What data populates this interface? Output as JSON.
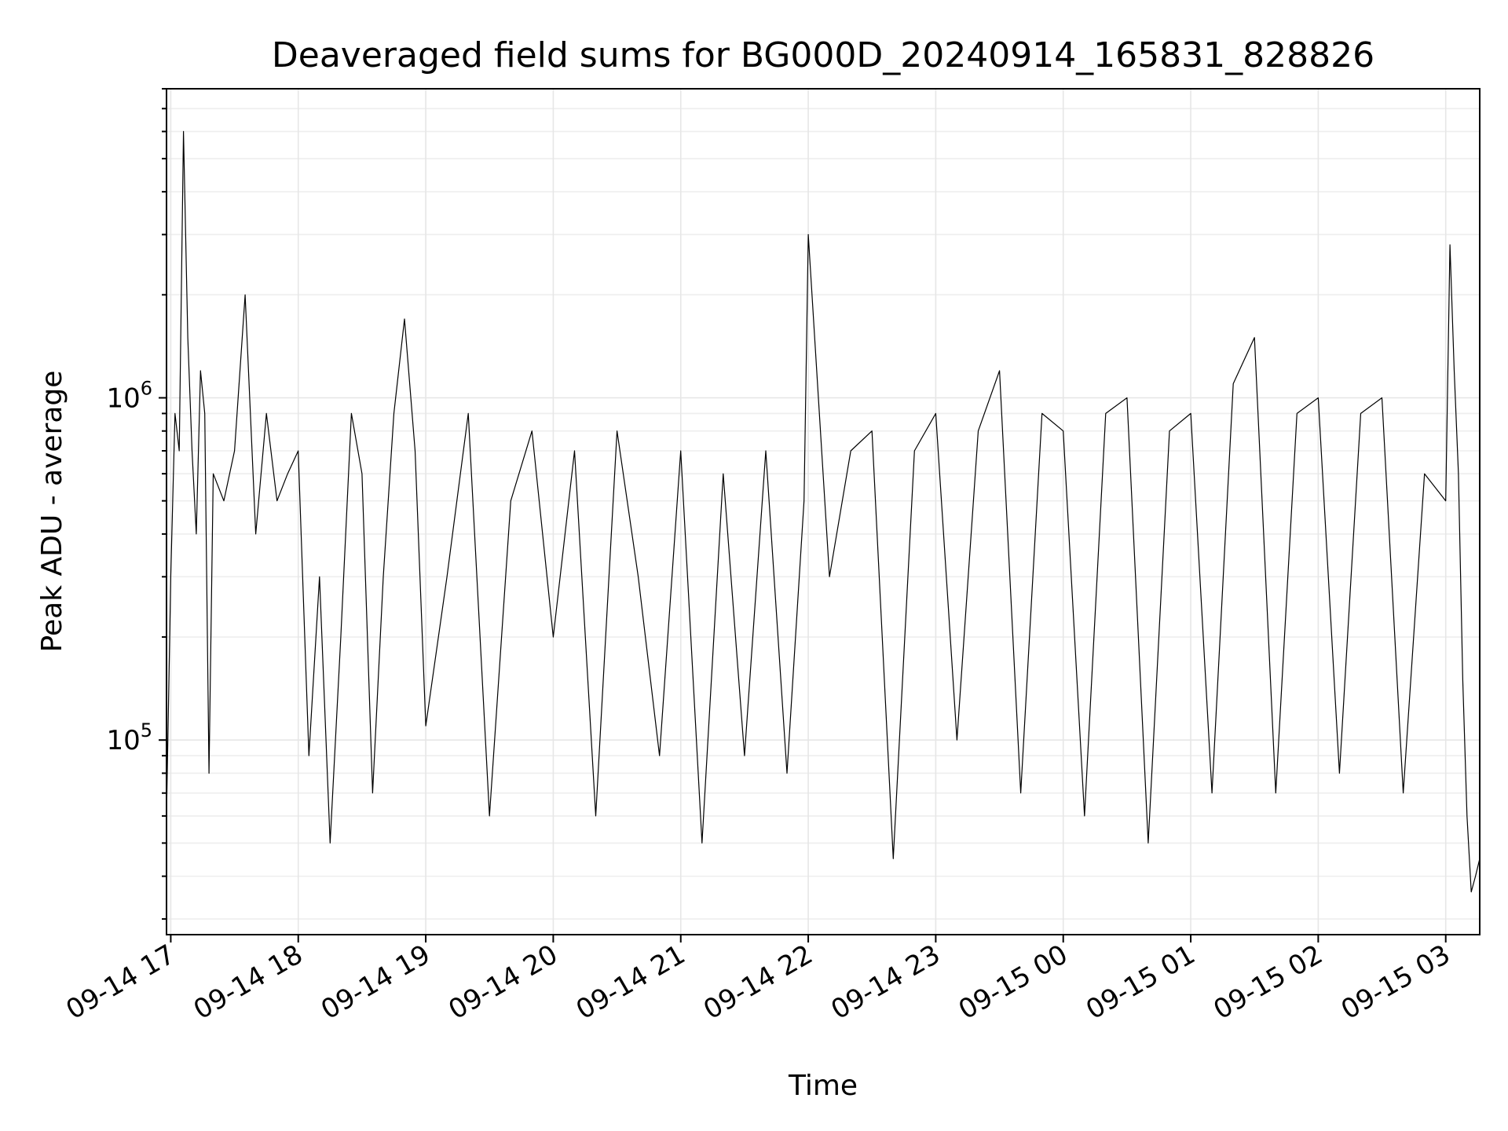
{
  "chart_data": {
    "type": "line",
    "title": "Deaveraged field sums for BG000D_20240914_165831_828826",
    "xlabel": "Time",
    "ylabel": "Peak ADU - average",
    "y_scale": "log",
    "ylim": [
      27000,
      8000000
    ],
    "xlim": [
      "2024-09-14 16:58",
      "2024-09-15 03:16"
    ],
    "x_ticks": [
      "09-14 17",
      "09-14 18",
      "09-14 19",
      "09-14 20",
      "09-14 21",
      "09-14 22",
      "09-14 23",
      "09-15 00",
      "09-15 01",
      "09-15 02",
      "09-15 03"
    ],
    "y_ticks": [
      {
        "value": 100000,
        "label": "10^5"
      },
      {
        "value": 1000000,
        "label": "10^6"
      }
    ],
    "grid": true,
    "line_color": "#000000",
    "series": [
      {
        "x": [
          "2024-09-14 16:58",
          "2024-09-14 17:00",
          "2024-09-14 17:02",
          "2024-09-14 17:04",
          "2024-09-14 17:06",
          "2024-09-14 17:08",
          "2024-09-14 17:10",
          "2024-09-14 17:12",
          "2024-09-14 17:14",
          "2024-09-14 17:16",
          "2024-09-14 17:18",
          "2024-09-14 17:20",
          "2024-09-14 17:25",
          "2024-09-14 17:30",
          "2024-09-14 17:35",
          "2024-09-14 17:40",
          "2024-09-14 17:45",
          "2024-09-14 17:50",
          "2024-09-14 17:55",
          "2024-09-14 18:00",
          "2024-09-14 18:05",
          "2024-09-14 18:10",
          "2024-09-14 18:15",
          "2024-09-14 18:20",
          "2024-09-14 18:25",
          "2024-09-14 18:30",
          "2024-09-14 18:35",
          "2024-09-14 18:40",
          "2024-09-14 18:45",
          "2024-09-14 18:50",
          "2024-09-14 18:55",
          "2024-09-14 19:00",
          "2024-09-14 19:10",
          "2024-09-14 19:20",
          "2024-09-14 19:30",
          "2024-09-14 19:40",
          "2024-09-14 19:50",
          "2024-09-14 20:00",
          "2024-09-14 20:10",
          "2024-09-14 20:20",
          "2024-09-14 20:30",
          "2024-09-14 20:40",
          "2024-09-14 20:50",
          "2024-09-14 21:00",
          "2024-09-14 21:10",
          "2024-09-14 21:20",
          "2024-09-14 21:30",
          "2024-09-14 21:40",
          "2024-09-14 21:50",
          "2024-09-14 21:58",
          "2024-09-14 22:00",
          "2024-09-14 22:10",
          "2024-09-14 22:20",
          "2024-09-14 22:30",
          "2024-09-14 22:40",
          "2024-09-14 22:50",
          "2024-09-14 23:00",
          "2024-09-14 23:10",
          "2024-09-14 23:20",
          "2024-09-14 23:30",
          "2024-09-14 23:40",
          "2024-09-14 23:50",
          "2024-09-15 00:00",
          "2024-09-15 00:10",
          "2024-09-15 00:20",
          "2024-09-15 00:30",
          "2024-09-15 00:40",
          "2024-09-15 00:50",
          "2024-09-15 01:00",
          "2024-09-15 01:10",
          "2024-09-15 01:20",
          "2024-09-15 01:30",
          "2024-09-15 01:40",
          "2024-09-15 01:50",
          "2024-09-15 02:00",
          "2024-09-15 02:10",
          "2024-09-15 02:20",
          "2024-09-15 02:30",
          "2024-09-15 02:40",
          "2024-09-15 02:50",
          "2024-09-15 03:00",
          "2024-09-15 03:02",
          "2024-09-15 03:04",
          "2024-09-15 03:06",
          "2024-09-15 03:08",
          "2024-09-15 03:10",
          "2024-09-15 03:12",
          "2024-09-15 03:14",
          "2024-09-15 03:16"
        ],
        "y": [
          60000,
          300000,
          900000,
          700000,
          6000000,
          1500000,
          700000,
          400000,
          1200000,
          900000,
          80000,
          600000,
          500000,
          700000,
          2000000,
          400000,
          900000,
          500000,
          600000,
          700000,
          90000,
          300000,
          50000,
          200000,
          900000,
          600000,
          70000,
          300000,
          900000,
          1700000,
          700000,
          110000,
          300000,
          900000,
          60000,
          500000,
          800000,
          200000,
          700000,
          60000,
          800000,
          300000,
          90000,
          700000,
          50000,
          600000,
          90000,
          700000,
          80000,
          500000,
          3000000,
          300000,
          700000,
          800000,
          45000,
          700000,
          900000,
          100000,
          800000,
          1200000,
          70000,
          900000,
          800000,
          60000,
          900000,
          1000000,
          50000,
          800000,
          900000,
          70000,
          1100000,
          1500000,
          70000,
          900000,
          1000000,
          80000,
          900000,
          1000000,
          70000,
          600000,
          500000,
          2800000,
          1200000,
          600000,
          150000,
          60000,
          36000,
          40000,
          45000
        ]
      }
    ]
  }
}
